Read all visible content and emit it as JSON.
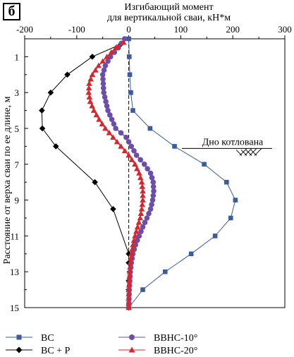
{
  "panel_label": "б",
  "chart_data": {
    "type": "scatter",
    "title": "Изгибающий момент\nдля вертикальной сваи, кН*м",
    "xlabel": "Изгибающий момент для вертикальной сваи, кН*м",
    "ylabel": "Расстояние от верха сваи по ее длине, м",
    "xlim": [
      -200,
      300
    ],
    "ylim": [
      15,
      0
    ],
    "x_ticks": [
      -200,
      -100,
      0,
      100,
      200,
      300
    ],
    "y_ticks": [
      1,
      3,
      5,
      7,
      9,
      11,
      13,
      15
    ],
    "x_axis_position": "top",
    "y_inverted": true,
    "grid": false,
    "legend_position": "bottom",
    "annotation": {
      "text": "Дно котлована",
      "depth": 6.0
    },
    "series": [
      {
        "name": "ВС",
        "color": "#3a5c9e",
        "marker": "square",
        "x": [
          0,
          1,
          2,
          4,
          8,
          41,
          88,
          145,
          188,
          205,
          196,
          166,
          120,
          70,
          27,
          0
        ],
        "y": [
          0,
          1,
          2,
          3,
          4,
          5,
          6,
          7,
          8,
          9,
          10,
          11,
          12,
          13,
          14,
          15
        ]
      },
      {
        "name": "ВС + Р",
        "color": "#000000",
        "marker": "diamond",
        "x": [
          -15,
          -70,
          -118,
          -150,
          -167,
          -166,
          -140,
          -65,
          -30,
          0,
          0,
          2,
          0,
          0,
          0
        ],
        "y": [
          0.3,
          1,
          2,
          3,
          4,
          5,
          6,
          8,
          9.5,
          12,
          12.5,
          13,
          13.5,
          14,
          15
        ]
      },
      {
        "name": "ВВНС-10°",
        "color": "#6a4fa8",
        "marker": "circle",
        "x": [
          -8,
          -20,
          -35,
          -45,
          -50,
          -48,
          -40,
          -25,
          -5,
          15,
          30,
          42,
          47,
          48,
          46,
          42,
          35,
          27,
          20,
          13,
          8,
          5,
          3,
          2,
          1,
          0
        ],
        "y": [
          0,
          0.5,
          1,
          1.5,
          2,
          3,
          4,
          5,
          5.5,
          6.5,
          7,
          7.5,
          8,
          8.5,
          9,
          9.5,
          10,
          10.5,
          11,
          11.5,
          12,
          12.5,
          13,
          13.5,
          14,
          15
        ],
        "dense": true
      },
      {
        "name": "ВВНС-20°",
        "color": "#d8262e",
        "marker": "triangle",
        "x": [
          -10,
          -25,
          -42,
          -58,
          -70,
          -76,
          -77,
          -74,
          -67,
          -57,
          -45,
          -30,
          -15,
          0,
          12,
          20,
          25,
          27,
          27,
          25,
          22,
          17,
          12,
          8,
          5,
          3,
          2,
          1,
          0,
          0
        ],
        "y": [
          0.2,
          0.5,
          1,
          1.5,
          2,
          2.5,
          3,
          3.5,
          4,
          4.5,
          5,
          5.5,
          6,
          6.5,
          7,
          7.5,
          8,
          8.5,
          9,
          9.5,
          10,
          10.5,
          11,
          11.5,
          12,
          12.5,
          13,
          13.5,
          14,
          15
        ],
        "dense": true
      }
    ]
  },
  "legend": [
    {
      "label": "ВС"
    },
    {
      "label": "ВС + Р"
    },
    {
      "label": "ВВНС-10°"
    },
    {
      "label": "ВВНС-20°"
    }
  ]
}
